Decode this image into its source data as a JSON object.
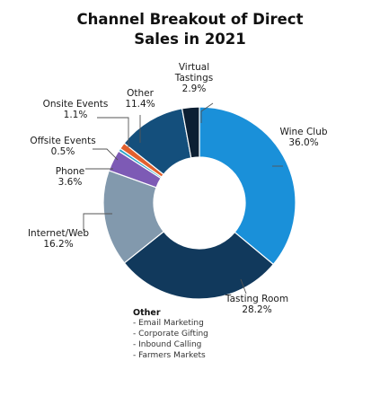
{
  "chart_data": {
    "type": "donut",
    "title_lines": [
      "Channel Breakout of Direct",
      "Sales in 2021"
    ],
    "unit": "%",
    "slices": [
      {
        "label": "Wine Club",
        "value": 36.0,
        "color": "#1a90d9"
      },
      {
        "label": "Tasting Room",
        "value": 28.2,
        "color": "#11395c"
      },
      {
        "label": "Internet/Web",
        "value": 16.2,
        "color": "#8299ad"
      },
      {
        "label": "Phone",
        "value": 3.6,
        "color": "#7d5ab5"
      },
      {
        "label": "Offsite Events",
        "value": 0.5,
        "color": "#2ba6c9"
      },
      {
        "label": "Onsite Events",
        "value": 1.1,
        "color": "#e2602e"
      },
      {
        "label": "Other",
        "value": 11.4,
        "color": "#144f7c"
      },
      {
        "label": "Virtual Tastings",
        "value": 2.9,
        "color": "#0c1f33"
      }
    ],
    "slice_labels": [
      {
        "lines": [
          "Wine Club",
          "36.0%"
        ]
      },
      {
        "lines": [
          "Tasting Room",
          "28.2%"
        ]
      },
      {
        "lines": [
          "Internet/Web",
          "16.2%"
        ]
      },
      {
        "lines": [
          "Phone",
          "3.6%"
        ]
      },
      {
        "lines": [
          "Offsite Events",
          "0.5%"
        ]
      },
      {
        "lines": [
          "Onsite Events",
          "1.1%"
        ]
      },
      {
        "lines": [
          "Other",
          "11.4%"
        ]
      },
      {
        "lines": [
          "Virtual",
          "Tastings",
          "2.9%"
        ]
      }
    ],
    "note": {
      "title": "Other",
      "items": [
        "- Email Marketing",
        "- Corporate Gifting",
        "- Inbound Calling",
        "- Farmers Markets"
      ]
    }
  }
}
